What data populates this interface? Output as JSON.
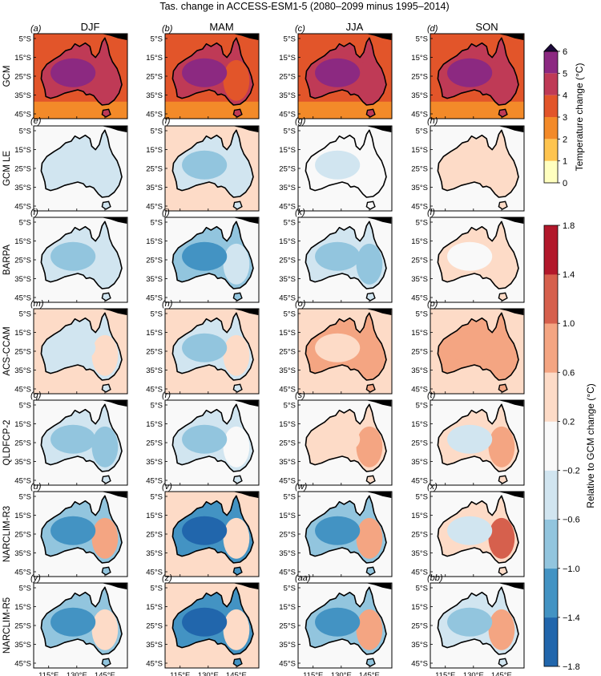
{
  "title": "Tas. change in ACCESS-ESM1-5 (2080–2099 minus 1995–2014)",
  "colors": {
    "ocean": "#f7f7f7",
    "land_white": "#f9f9f9",
    "coast": "#000000",
    "gcm_palette": [
      "#ffffbf",
      "#fec44f",
      "#f38a29",
      "#e2552a",
      "#bf3a56",
      "#8c2981",
      "#58157e",
      "#1d0b3b"
    ],
    "rel_palette": [
      "#08306b",
      "#2166ac",
      "#4393c3",
      "#92c5de",
      "#d1e5f0",
      "#f9f9f9",
      "#fddbc7",
      "#f4a582",
      "#d6604d",
      "#b2182b",
      "#67001f"
    ]
  },
  "chart_data": {
    "type": "heatmap",
    "columns": [
      "DJF",
      "MAM",
      "JJA",
      "SON"
    ],
    "rows": [
      "GCM",
      "GCM LE",
      "BARPA",
      "ACS-CCAM",
      "QLDFCP-2",
      "NARCLIM-R3",
      "NARCLIM-R5"
    ],
    "panel_labels": [
      [
        "(a)",
        "(b)",
        "(c)",
        "(d)"
      ],
      [
        "(e)",
        "(f)",
        "(g)",
        "(h)"
      ],
      [
        "(i)",
        "(j)",
        "(k)",
        "(l)"
      ],
      [
        "(m)",
        "(n)",
        "(o)",
        "(p)"
      ],
      [
        "(q)",
        "(r)",
        "(s)",
        "(t)"
      ],
      [
        "(u)",
        "(v)",
        "(w)",
        "(x)"
      ],
      [
        "(y)",
        "(z)",
        "(aa)",
        "(bb)"
      ]
    ],
    "lat_ticks": [
      "5°S",
      "15°S",
      "25°S",
      "35°S",
      "45°S"
    ],
    "lon_ticks": [
      "115°E",
      "130°E",
      "145°E"
    ],
    "gcm_colorbar": {
      "label": "Temperature change (°C)",
      "ticks": [
        "0",
        "1",
        "2",
        "3",
        "4",
        "5",
        "6"
      ],
      "extend": "max"
    },
    "rel_colorbar": {
      "label": "Relative to GCM change (°C)",
      "ticks": [
        "−1.8",
        "−1.4",
        "−1.0",
        "−0.6",
        "−0.2",
        "0.2",
        "0.6",
        "1.0",
        "1.4",
        "1.8"
      ]
    },
    "panel_fields": [
      [
        {
          "ocean": 3.0,
          "land": 4.5,
          "core": 5.2,
          "south": 2.0,
          "east": 4.0
        },
        {
          "ocean": 3.3,
          "land": 4.3,
          "core": 5.0,
          "south": 2.0,
          "east": 3.7
        },
        {
          "ocean": 3.7,
          "land": 4.6,
          "core": 5.2,
          "south": 2.8,
          "east": 4.3
        },
        {
          "ocean": 3.5,
          "land": 4.4,
          "core": 5.0,
          "south": 2.0,
          "east": 4.0
        }
      ],
      [
        {
          "ocean": 0.0,
          "land": -0.3,
          "core": -0.5,
          "south": 0.0,
          "east": -0.3
        },
        {
          "ocean": 0.3,
          "land": -0.3,
          "core": -0.9,
          "south": 0.2,
          "east": -0.3
        },
        {
          "ocean": 0.0,
          "land": 0.0,
          "core": -0.3,
          "south": 0.0,
          "east": 0.0
        },
        {
          "ocean": 0.0,
          "land": 0.3,
          "core": 0.3,
          "south": 0.0,
          "east": 0.3
        }
      ],
      [
        {
          "ocean": 0.0,
          "land": -0.3,
          "core": -0.8,
          "south": 0.0,
          "east": -0.3
        },
        {
          "ocean": 0.0,
          "land": -0.7,
          "core": -1.1,
          "south": 0.0,
          "east": -0.5
        },
        {
          "ocean": 0.0,
          "land": -0.5,
          "core": -0.9,
          "south": 0.0,
          "east": -0.7
        },
        {
          "ocean": 0.0,
          "land": 0.3,
          "core": 0.0,
          "south": 0.0,
          "east": 0.3
        }
      ],
      [
        {
          "ocean": 0.3,
          "land": -0.3,
          "core": -0.5,
          "south": 0.3,
          "east": 0.3
        },
        {
          "ocean": 0.3,
          "land": -0.3,
          "core": -0.7,
          "south": 0.3,
          "east": 0.3
        },
        {
          "ocean": 0.3,
          "land": 0.6,
          "core": 0.3,
          "south": 0.7,
          "east": 0.7
        },
        {
          "ocean": 0.3,
          "land": 0.6,
          "core": 0.7,
          "south": 0.5,
          "east": 0.7
        }
      ],
      [
        {
          "ocean": 0.0,
          "land": -0.5,
          "core": -0.8,
          "south": 0.0,
          "east": -0.7
        },
        {
          "ocean": 0.0,
          "land": -0.3,
          "core": -0.8,
          "south": 0.0,
          "east": 0.0
        },
        {
          "ocean": 0.0,
          "land": 0.3,
          "core": 0.3,
          "south": 0.0,
          "east": 0.7
        },
        {
          "ocean": 0.0,
          "land": 0.3,
          "core": -0.3,
          "south": 0.0,
          "east": 0.9
        }
      ],
      [
        {
          "ocean": 0.0,
          "land": -0.7,
          "core": -1.1,
          "south": 0.0,
          "east": 0.6
        },
        {
          "ocean": 0.3,
          "land": -1.1,
          "core": -1.5,
          "south": 0.3,
          "east": 0.3
        },
        {
          "ocean": 0.0,
          "land": -0.7,
          "core": -1.1,
          "south": 0.0,
          "east": 0.7
        },
        {
          "ocean": 0.0,
          "land": 0.3,
          "core": -0.5,
          "south": 0.0,
          "east": 1.1
        }
      ],
      [
        {
          "ocean": 0.0,
          "land": -0.7,
          "core": -1.1,
          "south": 0.0,
          "east": 0.3
        },
        {
          "ocean": 0.3,
          "land": -1.1,
          "core": -1.5,
          "south": 0.3,
          "east": 0.3
        },
        {
          "ocean": 0.0,
          "land": -0.9,
          "core": -1.3,
          "south": 0.0,
          "east": 0.7
        },
        {
          "ocean": 0.0,
          "land": -0.5,
          "core": -0.9,
          "south": 0.0,
          "east": 0.7
        }
      ]
    ]
  }
}
